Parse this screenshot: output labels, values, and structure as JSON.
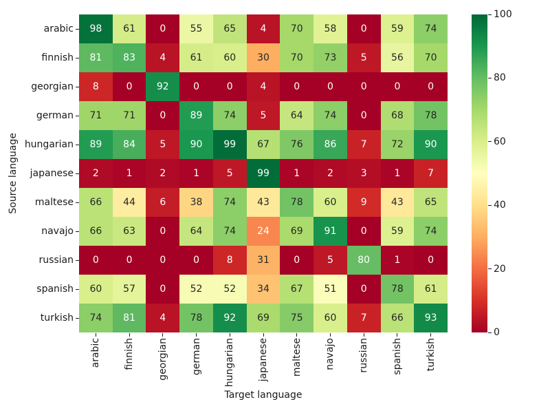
{
  "chart_data": {
    "type": "heatmap",
    "xlabel": "Target language",
    "ylabel": "Source language",
    "x_categories": [
      "arabic",
      "finnish",
      "georgian",
      "german",
      "hungarian",
      "japanese",
      "maltese",
      "navajo",
      "russian",
      "spanish",
      "turkish"
    ],
    "y_categories": [
      "arabic",
      "finnish",
      "georgian",
      "german",
      "hungarian",
      "japanese",
      "maltese",
      "navajo",
      "russian",
      "spanish",
      "turkish"
    ],
    "values": [
      [
        98,
        61,
        0,
        55,
        65,
        4,
        70,
        58,
        0,
        59,
        74
      ],
      [
        81,
        83,
        4,
        61,
        60,
        30,
        70,
        73,
        5,
        56,
        70
      ],
      [
        8,
        0,
        92,
        0,
        0,
        4,
        0,
        0,
        0,
        0,
        0
      ],
      [
        71,
        71,
        0,
        89,
        74,
        5,
        64,
        74,
        0,
        68,
        78
      ],
      [
        89,
        84,
        5,
        90,
        99,
        67,
        76,
        86,
        7,
        72,
        90
      ],
      [
        2,
        1,
        2,
        1,
        5,
        99,
        1,
        2,
        3,
        1,
        7
      ],
      [
        66,
        44,
        6,
        38,
        74,
        43,
        78,
        60,
        9,
        43,
        65
      ],
      [
        66,
        63,
        0,
        64,
        74,
        24,
        69,
        91,
        0,
        59,
        74
      ],
      [
        0,
        0,
        0,
        0,
        8,
        31,
        0,
        5,
        80,
        1,
        0
      ],
      [
        60,
        57,
        0,
        52,
        52,
        34,
        67,
        51,
        0,
        78,
        61
      ],
      [
        74,
        81,
        4,
        78,
        92,
        69,
        75,
        60,
        7,
        66,
        93
      ]
    ],
    "vmin": 0,
    "vmax": 100,
    "colormap": "RdYlGn",
    "colormap_stops": [
      "#a50026",
      "#d73027",
      "#f46d43",
      "#fdae61",
      "#fee08b",
      "#ffffbf",
      "#d9ef8b",
      "#a6d96a",
      "#66bd63",
      "#1a9850",
      "#006837"
    ],
    "colorbar_ticks": [
      "0",
      "20",
      "40",
      "60",
      "80",
      "100"
    ],
    "annotation_dark_color": "#262626",
    "annotation_light_color": "#ffffff",
    "grid": false,
    "legend_position": "colorbar-right"
  }
}
